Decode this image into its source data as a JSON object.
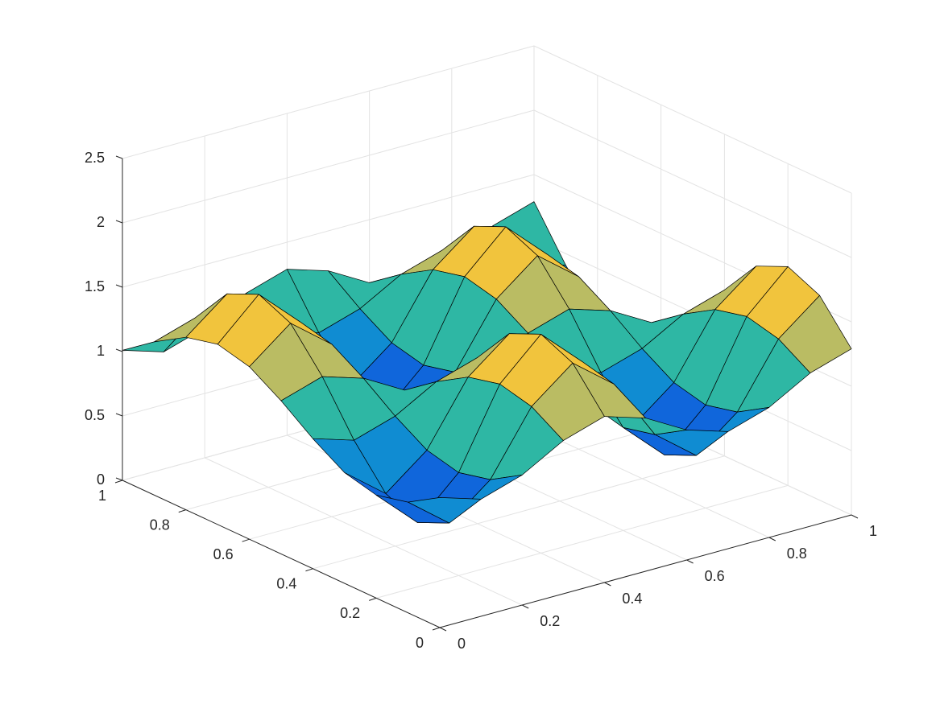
{
  "chart_data": {
    "type": "surface",
    "x": [
      0,
      0.1,
      0.2,
      0.3,
      0.4,
      0.5,
      0.6,
      0.7,
      0.8,
      0.9,
      1
    ],
    "y": [
      0,
      0.1,
      0.2,
      0.3,
      0.4,
      0.5,
      0.6,
      0.7,
      0.8,
      0.9,
      1
    ],
    "z": [
      [
        1.01,
        0.91,
        1.01,
        1.19,
        1.29,
        1.19,
        1.01,
        0.91,
        1.01,
        1.19,
        1.29
      ],
      [
        0.86,
        0.61,
        0.86,
        1.34,
        1.59,
        1.34,
        0.86,
        0.61,
        0.86,
        1.34,
        1.59
      ],
      [
        0.8,
        0.5,
        0.8,
        1.4,
        1.7,
        1.4,
        0.8,
        0.5,
        0.8,
        1.4,
        1.7
      ],
      [
        0.86,
        0.61,
        0.86,
        1.34,
        1.59,
        1.34,
        0.86,
        0.61,
        0.86,
        1.34,
        1.59
      ],
      [
        1.01,
        0.91,
        1.01,
        1.19,
        1.29,
        1.19,
        1.01,
        0.91,
        1.01,
        1.19,
        1.29
      ],
      [
        1.19,
        1.29,
        1.19,
        1.01,
        0.91,
        1.01,
        1.19,
        1.29,
        1.19,
        1.01,
        0.91
      ],
      [
        1.34,
        1.59,
        1.34,
        0.86,
        0.61,
        0.86,
        1.34,
        1.59,
        1.34,
        0.86,
        0.61
      ],
      [
        1.4,
        1.7,
        1.4,
        0.8,
        0.5,
        0.8,
        1.4,
        1.7,
        1.4,
        0.8,
        0.5
      ],
      [
        1.34,
        1.59,
        1.34,
        0.86,
        0.61,
        0.86,
        1.34,
        1.59,
        1.34,
        0.86,
        0.61
      ],
      [
        1.19,
        1.29,
        1.19,
        1.01,
        0.91,
        1.01,
        1.19,
        1.29,
        1.19,
        1.01,
        0.91
      ],
      [
        1.01,
        0.91,
        1.01,
        1.19,
        1.29,
        1.19,
        1.01,
        0.91,
        1.01,
        1.19,
        1.29
      ]
    ],
    "xlim": [
      0,
      1
    ],
    "ylim": [
      0,
      1
    ],
    "zlim": [
      0,
      2.5
    ],
    "xticks": [
      0,
      0.2,
      0.4,
      0.6,
      0.8,
      1
    ],
    "yticks": [
      0,
      0.2,
      0.4,
      0.6,
      0.8,
      1
    ],
    "zticks": [
      0,
      0.5,
      1,
      1.5,
      2,
      2.5
    ],
    "grid": true,
    "colormap": [
      "#352a87",
      "#0f5cdd",
      "#1481d6",
      "#06a4ca",
      "#2eb7a4",
      "#87bf77",
      "#d1bb59",
      "#fec832",
      "#f9fb0e"
    ],
    "edge_color": "#000000"
  }
}
